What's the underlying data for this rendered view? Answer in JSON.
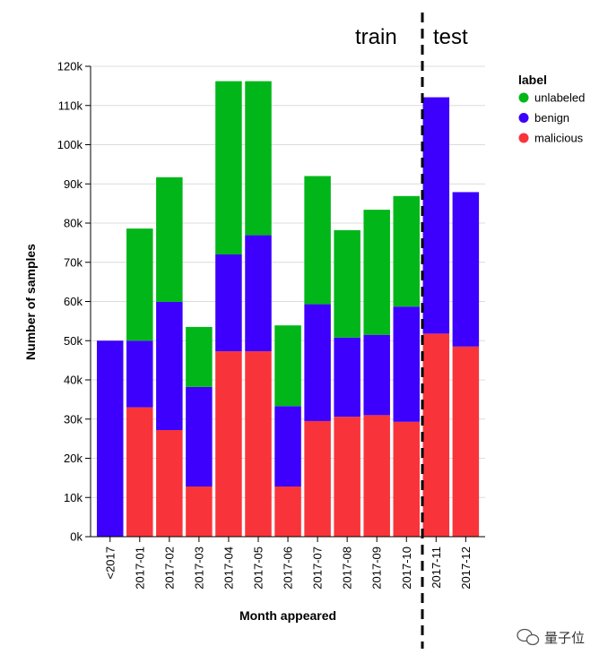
{
  "chart_data": {
    "type": "bar",
    "stacked": true,
    "categories": [
      "<2017",
      "2017-01",
      "2017-02",
      "2017-03",
      "2017-04",
      "2017-05",
      "2017-06",
      "2017-07",
      "2017-08",
      "2017-09",
      "2017-10",
      "2017-11",
      "2017-12"
    ],
    "series": [
      {
        "name": "malicious",
        "color": "#f8343a",
        "values": [
          0,
          33000,
          27200,
          12800,
          47300,
          47300,
          12800,
          29500,
          30600,
          31000,
          29300,
          51800,
          48500
        ]
      },
      {
        "name": "benign",
        "color": "#3c00fc",
        "values": [
          50000,
          17000,
          32700,
          25400,
          24700,
          29600,
          20500,
          29800,
          20200,
          20500,
          29400,
          60300,
          39400
        ]
      },
      {
        "name": "unlabeled",
        "color": "#00b619",
        "values": [
          0,
          28600,
          31800,
          15300,
          44200,
          39300,
          20600,
          32700,
          27400,
          31900,
          28200,
          0,
          0
        ]
      }
    ],
    "xlabel": "Month appeared",
    "ylabel": "Number of samples",
    "ylim": [
      0,
      120000
    ],
    "yticks": [
      0,
      10000,
      20000,
      30000,
      40000,
      50000,
      60000,
      70000,
      80000,
      90000,
      100000,
      110000,
      120000
    ],
    "ytick_labels": [
      "0k",
      "10k",
      "20k",
      "30k",
      "40k",
      "50k",
      "60k",
      "70k",
      "80k",
      "90k",
      "100k",
      "110k",
      "120k"
    ],
    "grid": true,
    "legend": {
      "title": "label",
      "position": "right",
      "items": [
        {
          "name": "unlabeled",
          "color": "#00b619"
        },
        {
          "name": "benign",
          "color": "#3c00fc"
        },
        {
          "name": "malicious",
          "color": "#f8343a"
        }
      ]
    },
    "annotations": {
      "train_label": "train",
      "test_label": "test",
      "split_after_category": "2017-10"
    }
  },
  "watermark": {
    "text": "量子位",
    "icon": "wechat-icon"
  }
}
